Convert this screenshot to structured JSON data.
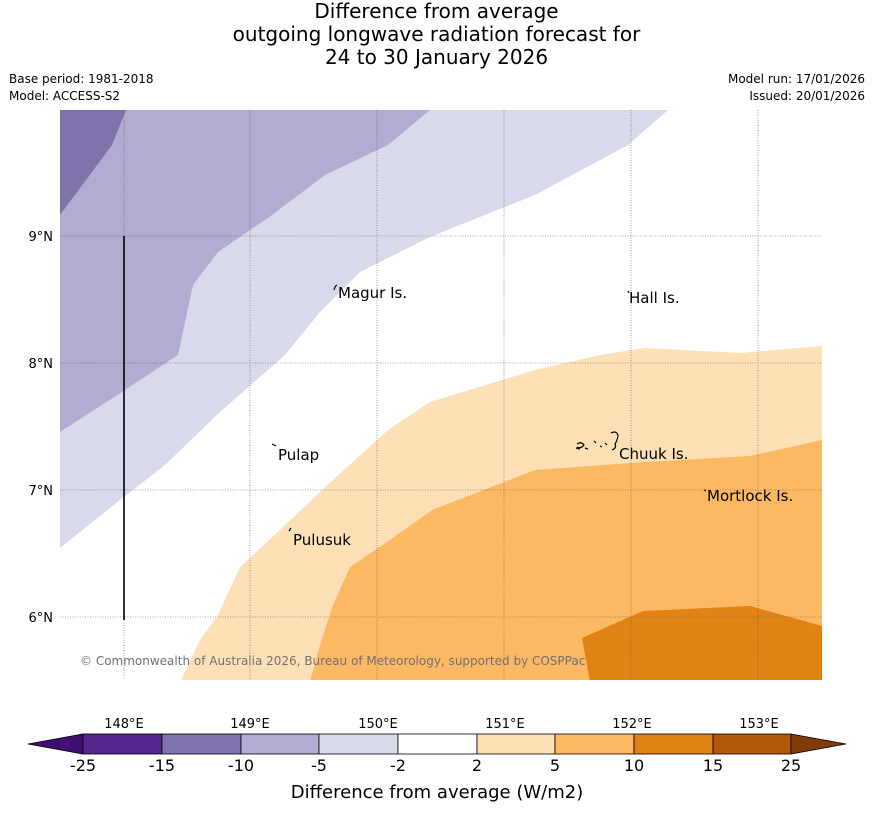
{
  "title": {
    "line1": "Difference from average",
    "line2": "outgoing longwave radiation forecast for",
    "line3": "24 to 30 January 2026"
  },
  "meta": {
    "base_period": "Base period: 1981-2018",
    "model": "Model: ACCESS-S2",
    "model_run": "Model run: 17/01/2026",
    "issued": "Issued: 20/01/2026"
  },
  "map": {
    "lon_ticks": [
      "148°E",
      "149°E",
      "150°E",
      "151°E",
      "152°E",
      "153°E"
    ],
    "lat_ticks": [
      "9°N",
      "8°N",
      "7°N",
      "6°N"
    ],
    "places": {
      "magur": "Magur Is.",
      "hall": "Hall Is.",
      "pulap": "Pulap",
      "chuuk": "Chuuk Is.",
      "mortlock": "Mortlock Is.",
      "pulusuk": "Pulusuk"
    },
    "copyright": "© Commonwealth of Australia 2026, Bureau of Meteorology, supported by COSPPac"
  },
  "colorbar": {
    "label": "Difference from average (W/m2)",
    "ticks": [
      "-25",
      "-15",
      "-10",
      "-5",
      "-2",
      "2",
      "5",
      "10",
      "15",
      "25"
    ],
    "colors": {
      "below_min": "#3f0f72",
      "c1": "#54278f",
      "c2": "#8073ac",
      "c3": "#b2abd2",
      "c4": "#d8daeb",
      "c5": "#ffffff",
      "c6": "#fee0b6",
      "c7": "#fdb863",
      "c8": "#e08214",
      "c9": "#b35806",
      "above_max": "#7f3b08"
    }
  }
}
